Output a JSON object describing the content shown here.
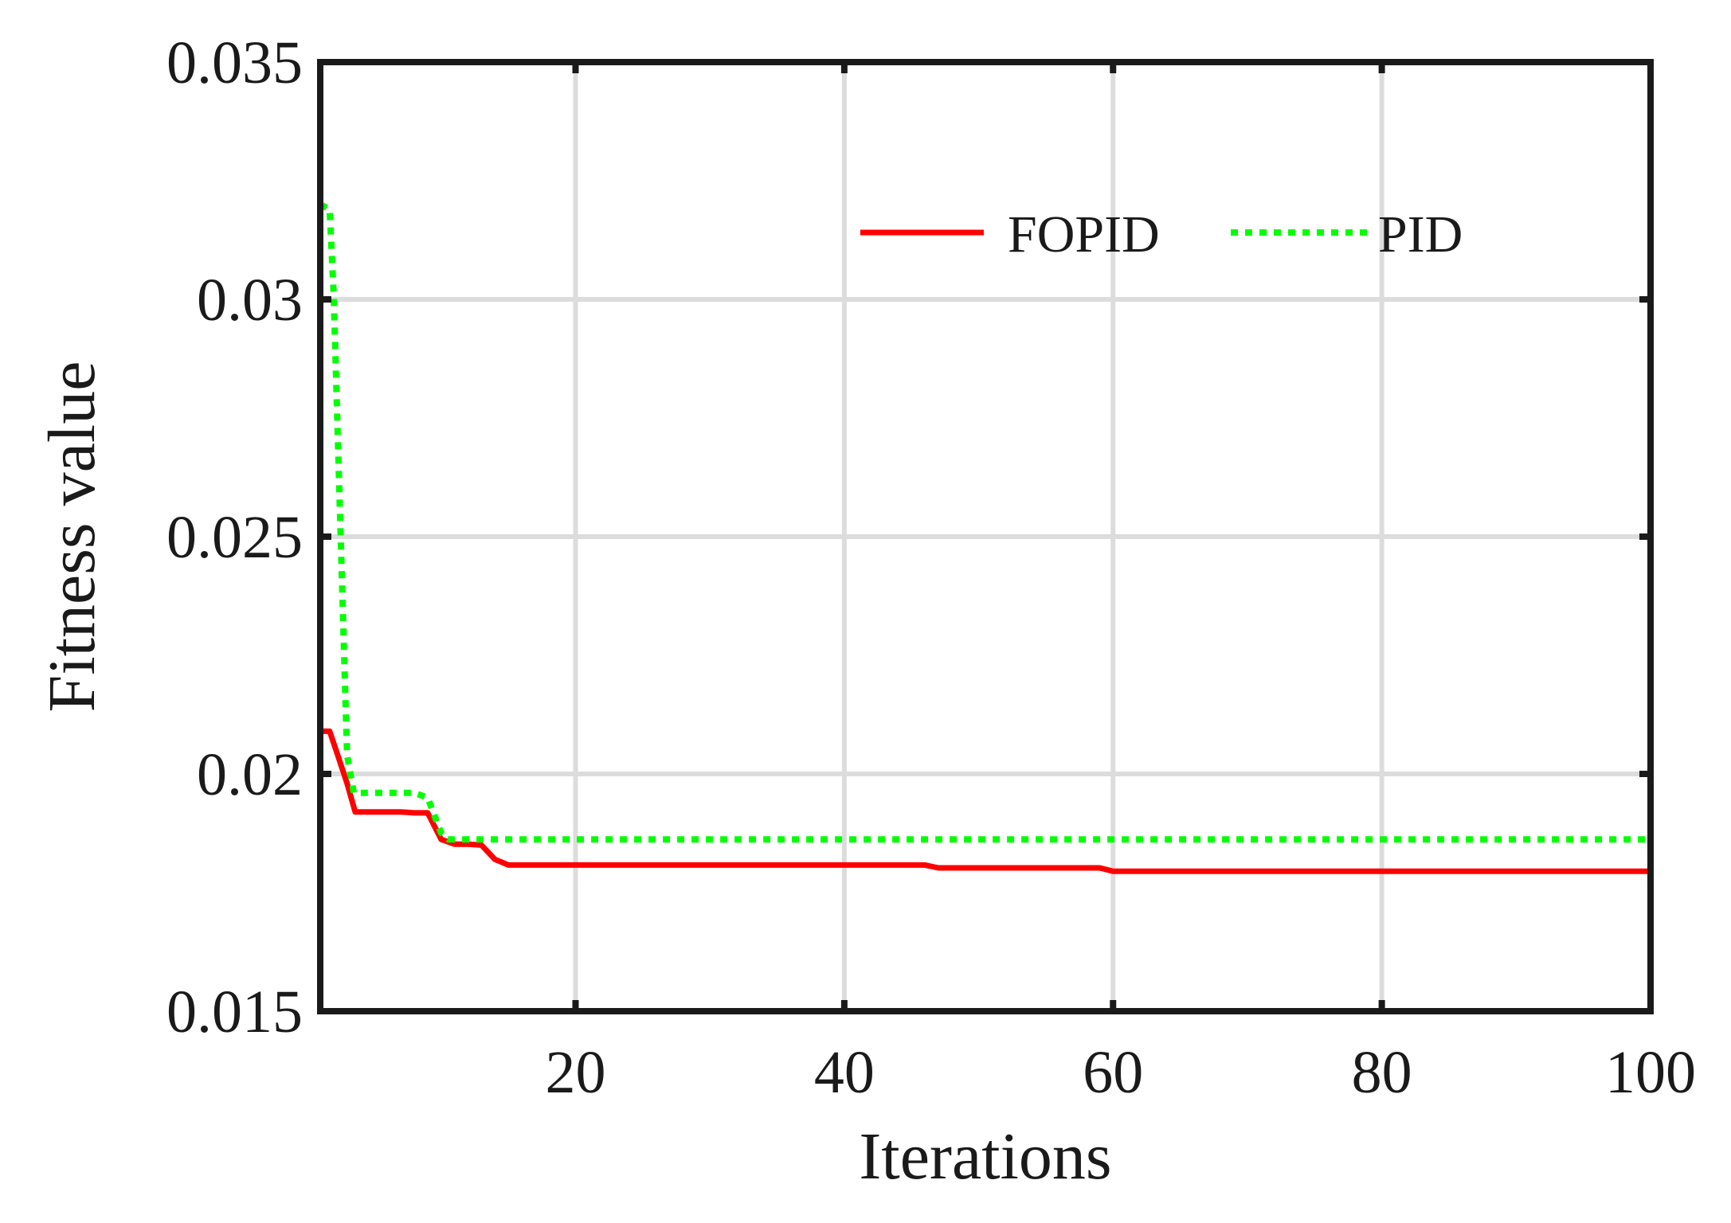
{
  "chart_data": {
    "type": "line",
    "title": "",
    "xlabel": "Iterations",
    "ylabel": "Fitness value",
    "xlim": [
      1,
      100
    ],
    "ylim": [
      0.015,
      0.035
    ],
    "x_ticks": [
      20,
      40,
      60,
      80,
      100
    ],
    "x_tick_labels": [
      "20",
      "40",
      "60",
      "80",
      "100"
    ],
    "y_ticks": [
      0.015,
      0.02,
      0.025,
      0.03,
      0.035
    ],
    "y_tick_labels": [
      "0.015",
      "0.02",
      "0.025",
      "0.03",
      "0.035"
    ],
    "grid": true,
    "legend": {
      "placement": "top-right",
      "orientation": "horizontal"
    },
    "series": [
      {
        "name": "FOPID",
        "color": "#ff0000",
        "style": "solid",
        "x": [
          1,
          1.7,
          2.3,
          3,
          3.6,
          5,
          7,
          8,
          9,
          10,
          11,
          12,
          13,
          14,
          15,
          20,
          30,
          40,
          46,
          47,
          50,
          59,
          60,
          70,
          80,
          90,
          100
        ],
        "y": [
          0.0209,
          0.0209,
          0.0204,
          0.0198,
          0.0192,
          0.0192,
          0.0192,
          0.01918,
          0.01918,
          0.01862,
          0.01852,
          0.01852,
          0.0185,
          0.0182,
          0.01808,
          0.01808,
          0.01808,
          0.01808,
          0.01808,
          0.01802,
          0.01802,
          0.01802,
          0.01795,
          0.01795,
          0.01795,
          0.01795,
          0.01795
        ]
      },
      {
        "name": "PID",
        "color": "#00ff00",
        "style": "dotted",
        "x": [
          1,
          1.7,
          2,
          2.5,
          3,
          3.5,
          6,
          8,
          9,
          9.5,
          10,
          10.5,
          20,
          40,
          60,
          80,
          100
        ],
        "y": [
          0.032,
          0.0319,
          0.0301,
          0.0252,
          0.0204,
          0.0196,
          0.0196,
          0.0196,
          0.0195,
          0.01912,
          0.01876,
          0.01862,
          0.01862,
          0.01862,
          0.01862,
          0.01862,
          0.01862
        ]
      }
    ]
  }
}
